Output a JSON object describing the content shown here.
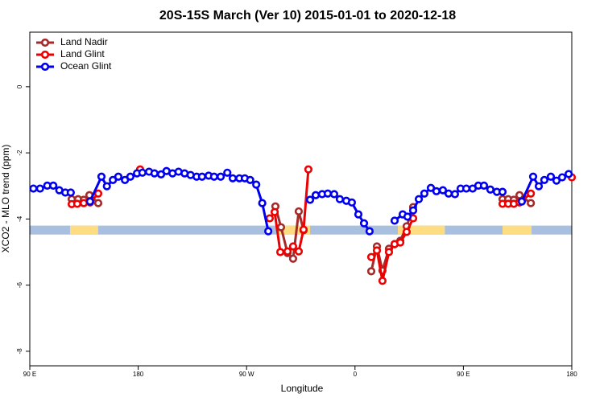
{
  "chart_data": {
    "type": "line",
    "title": "20S-15S March (Ver 10)   2015-01-01 to 2020-12-18",
    "x_label": "Longitude",
    "y_label": "XCO2 - MLO trend (ppm)",
    "xlim": [
      90,
      540
    ],
    "ylim": [
      -8.44,
      1.65
    ],
    "xticks": [
      {
        "value": 90,
        "label": "90 E"
      },
      {
        "value": 180,
        "label": "180"
      },
      {
        "value": 270,
        "label": "90 W"
      },
      {
        "value": 360,
        "label": "0"
      },
      {
        "value": 450,
        "label": "90 E"
      },
      {
        "value": 540,
        "label": "180"
      }
    ],
    "yticks": [
      0,
      -2,
      -4,
      -6,
      -8
    ],
    "legend": "top-left",
    "band": {
      "range": [
        -4.47,
        -4.2
      ],
      "color": "#a8bfe0",
      "land_color": "#fddc82",
      "land": [
        [
          123.4,
          146.8
        ],
        [
          294.6,
          322.7
        ],
        [
          395.6,
          434.6
        ],
        [
          482.5,
          506.6
        ]
      ]
    },
    "series": [
      {
        "name": "Land Nadir",
        "color": "#a52a2a",
        "x": [
          124.8,
          130.1,
          134.8,
          139.5,
          146.8,
          null,
          293.9,
          298.6,
          304,
          308.6,
          313.3,
          317.3,
          null,
          373.5,
          378.2,
          382.8,
          388.2,
          392.9,
          397.6,
          402.9,
          408.3,
          null,
          482.5,
          487.2,
          491.9,
          496.6,
          506
        ],
        "values": [
          -3.4,
          -3.4,
          -3.42,
          -3.28,
          -3.52,
          null,
          -3.62,
          -4.25,
          -5.03,
          -5.2,
          -3.77,
          -4.34,
          null,
          -5.58,
          -4.83,
          -5.56,
          -4.9,
          -4.76,
          -4.66,
          -4.22,
          -3.64,
          null,
          -3.4,
          -3.4,
          -3.42,
          -3.28,
          -3.52
        ]
      },
      {
        "name": "Land Glint",
        "color": "#ee0000",
        "x": [
          124.8,
          129.4,
          134.8,
          140.1,
          146.8,
          null,
          181.6,
          null,
          289.2,
          293.3,
          298,
          304,
          308.6,
          313.3,
          317.3,
          321.3,
          null,
          373.5,
          378.2,
          382.8,
          388.2,
          392.9,
          397.6,
          402.9,
          408.3,
          null,
          482.5,
          487.2,
          491.9,
          496.6,
          506,
          null,
          540
        ],
        "values": [
          -3.55,
          -3.54,
          -3.52,
          -3.5,
          -3.23,
          null,
          -2.5,
          null,
          -3.98,
          -3.79,
          -5.0,
          -4.98,
          -4.83,
          -4.98,
          -4.32,
          -2.5,
          null,
          -5.15,
          -4.95,
          -5.87,
          -5.0,
          -4.76,
          -4.71,
          -4.39,
          -3.98,
          null,
          -3.54,
          -3.54,
          -3.54,
          -3.5,
          -3.23,
          null,
          -2.74
        ]
      },
      {
        "name": "Ocean Glint",
        "color": "#0000ee",
        "x": [
          93,
          98.5,
          104.5,
          109.5,
          114.5,
          119.5,
          124,
          null,
          140,
          149.5,
          154,
          159,
          163.5,
          169,
          173.5,
          179,
          183.5,
          189,
          193.5,
          199,
          203.5,
          208.5,
          213.5,
          218.5,
          223.5,
          228.5,
          233,
          238.5,
          243,
          248.5,
          254,
          258.5,
          264,
          268.5,
          273,
          278,
          283,
          288,
          null,
          322.7,
          327.4,
          332.7,
          337.4,
          342.7,
          347.4,
          352.8,
          357.4,
          362.8,
          367.5,
          372.1,
          null,
          392.9,
          399.6,
          403.6,
          408.3,
          413,
          417.6,
          423,
          427.6,
          433,
          437.7,
          443,
          447.7,
          452.4,
          457.7,
          462.4,
          467.1,
          472.4,
          477.8,
          482.5,
          null,
          498.5,
          507.9,
          512.6,
          517.2,
          522.6,
          527.3,
          532,
          537.4
        ],
        "values": [
          -3.08,
          -3.08,
          -2.99,
          -2.99,
          -3.13,
          -3.2,
          -3.2,
          null,
          -3.47,
          -2.72,
          -3.01,
          -2.82,
          -2.72,
          -2.82,
          -2.72,
          -2.62,
          -2.6,
          -2.57,
          -2.62,
          -2.65,
          -2.55,
          -2.62,
          -2.57,
          -2.62,
          -2.67,
          -2.72,
          -2.72,
          -2.69,
          -2.72,
          -2.72,
          -2.6,
          -2.77,
          -2.77,
          -2.77,
          -2.82,
          -2.96,
          -3.52,
          -4.37,
          null,
          -3.42,
          -3.28,
          -3.25,
          -3.23,
          -3.25,
          -3.4,
          -3.45,
          -3.5,
          -3.86,
          -4.13,
          -4.37,
          null,
          -4.05,
          -3.86,
          -3.93,
          -3.74,
          -3.4,
          -3.23,
          -3.06,
          -3.16,
          -3.13,
          -3.23,
          -3.25,
          -3.08,
          -3.08,
          -3.08,
          -2.99,
          -2.99,
          -3.11,
          -3.18,
          -3.18,
          null,
          -3.47,
          -2.72,
          -3.01,
          -2.82,
          -2.72,
          -2.84,
          -2.74,
          -2.64
        ]
      }
    ]
  }
}
